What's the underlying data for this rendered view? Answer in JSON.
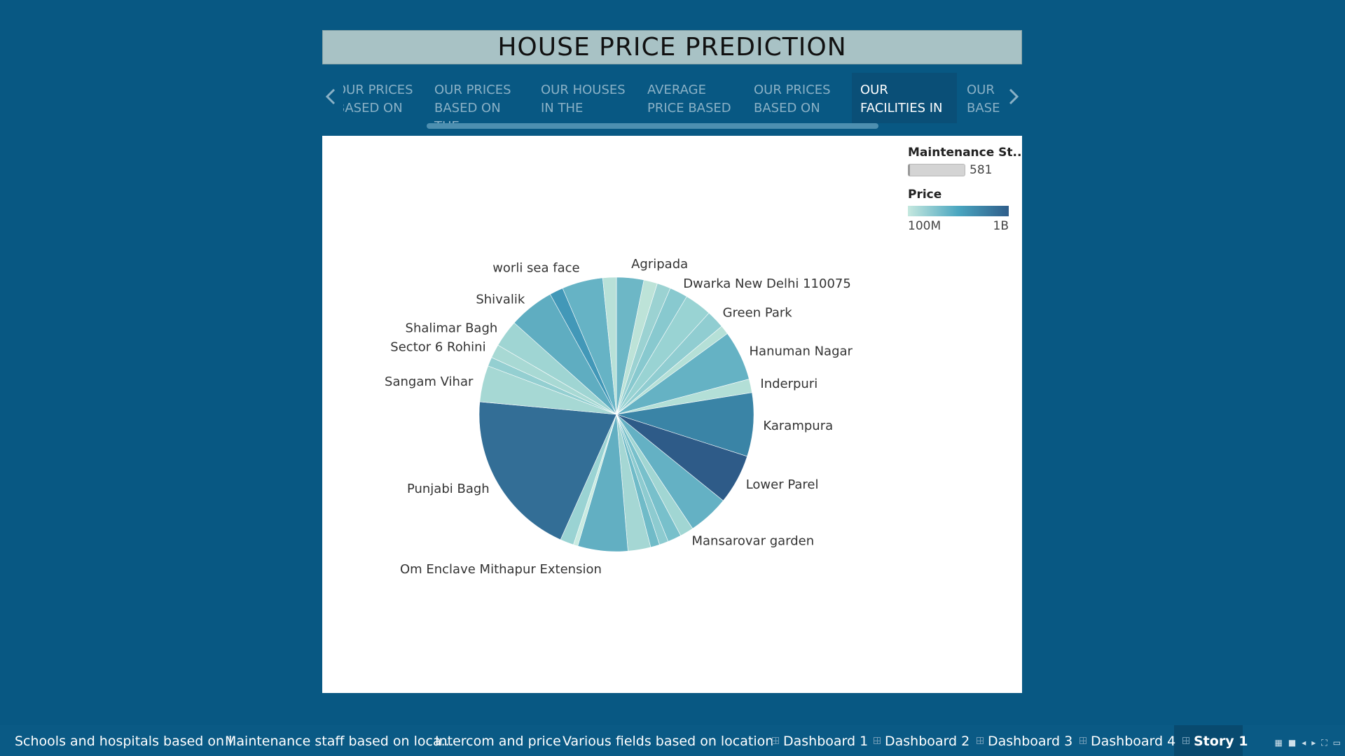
{
  "title": "HOUSE PRICE PREDICTION",
  "story_points": [
    {
      "line1": "OUR PRICES",
      "line2": "BASED ON"
    },
    {
      "line1": "OUR PRICES",
      "line2": "BASED ON THE"
    },
    {
      "line1": "OUR HOUSES",
      "line2": "IN THE"
    },
    {
      "line1": "AVERAGE",
      "line2": "PRICE BASED"
    },
    {
      "line1": "OUR PRICES",
      "line2": "BASED ON"
    },
    {
      "line1": "OUR",
      "line2": "FACILITIES IN"
    },
    {
      "line1": "OUR",
      "line2": "BASED"
    }
  ],
  "active_story_point": 5,
  "legend": {
    "size_title": "Maintenance St..",
    "size_value": "581",
    "color_title": "Price",
    "color_min": "100M",
    "color_max": "1B",
    "colors": [
      "#c5e8df",
      "#4aa6c0",
      "#2f5d8a"
    ]
  },
  "chart_data": {
    "type": "pie",
    "size_measure": "Maintenance St..",
    "color_measure": "Price",
    "slices": [
      {
        "label": "Agripada",
        "value": 3.0,
        "color": "#6db7c6"
      },
      {
        "label": "",
        "value": 1.5,
        "color": "#bde3d8"
      },
      {
        "label": "",
        "value": 1.5,
        "color": "#9bd2d2"
      },
      {
        "label": "Dwarka New Delhi 110075",
        "value": 2.0,
        "color": "#88c9cf"
      },
      {
        "label": "",
        "value": 3.0,
        "color": "#99d3d3"
      },
      {
        "label": "Green Park",
        "value": 2.0,
        "color": "#90cdd1"
      },
      {
        "label": "",
        "value": 1.0,
        "color": "#b5e0d7"
      },
      {
        "label": "Hanuman Nagar",
        "value": 5.5,
        "color": "#65b2c4"
      },
      {
        "label": "Inderpuri",
        "value": 1.5,
        "color": "#b3dfd7"
      },
      {
        "label": "Karampura",
        "value": 7.0,
        "color": "#3a84a6"
      },
      {
        "label": "Lower Parel",
        "value": 5.5,
        "color": "#2e5b88"
      },
      {
        "label": "",
        "value": 4.5,
        "color": "#64b1c4"
      },
      {
        "label": "Mansarovar garden",
        "value": 1.5,
        "color": "#a1d6d3"
      },
      {
        "label": "",
        "value": 1.5,
        "color": "#78c0cb"
      },
      {
        "label": "",
        "value": 1.0,
        "color": "#8dcbd0"
      },
      {
        "label": "",
        "value": 1.0,
        "color": "#70bbc8"
      },
      {
        "label": "",
        "value": 2.5,
        "color": "#a5d7d4"
      },
      {
        "label": "Om Enclave Mithapur Extension",
        "value": 5.5,
        "color": "#62afc2"
      },
      {
        "label": "",
        "value": 0.5,
        "color": "#c9ebe1"
      },
      {
        "label": "",
        "value": 1.5,
        "color": "#9ad3d3"
      },
      {
        "label": "Punjabi Bagh",
        "value": 18.5,
        "color": "#336e96"
      },
      {
        "label": "Sangam Vihar",
        "value": 4.0,
        "color": "#a6d8d4"
      },
      {
        "label": "",
        "value": 1.0,
        "color": "#94cfd1"
      },
      {
        "label": "Sector 6 Rohini",
        "value": 1.5,
        "color": "#a8d9d4"
      },
      {
        "label": "Shalimar Bagh",
        "value": 3.0,
        "color": "#9fd5d3"
      },
      {
        "label": "Shivalik",
        "value": 5.0,
        "color": "#5fadc1"
      },
      {
        "label": "",
        "value": 1.5,
        "color": "#4298b8"
      },
      {
        "label": "worli sea face",
        "value": 4.5,
        "color": "#66b3c5"
      },
      {
        "label": "",
        "value": 1.5,
        "color": "#b8e1d8"
      }
    ]
  },
  "bottom_tabs": [
    {
      "label": "Schools and hospitals based on l...",
      "icon": ""
    },
    {
      "label": "Maintenance staff based on loca...",
      "icon": ""
    },
    {
      "label": "Intercom and price",
      "icon": ""
    },
    {
      "label": "Various fields based on location",
      "icon": ""
    },
    {
      "label": "Dashboard 1",
      "icon": "grid-icon"
    },
    {
      "label": "Dashboard 2",
      "icon": "grid-icon"
    },
    {
      "label": "Dashboard 3",
      "icon": "grid-icon"
    },
    {
      "label": "Dashboard 4",
      "icon": "grid-icon"
    },
    {
      "label": "Story 1",
      "icon": "grid-icon"
    }
  ],
  "active_bottom_tab": 8,
  "bottom_icons": [
    "sheet-sorter-icon",
    "filmstrip-icon",
    "prev-sheet-icon",
    "next-sheet-icon",
    "fullscreen-icon",
    "presentation-icon"
  ]
}
